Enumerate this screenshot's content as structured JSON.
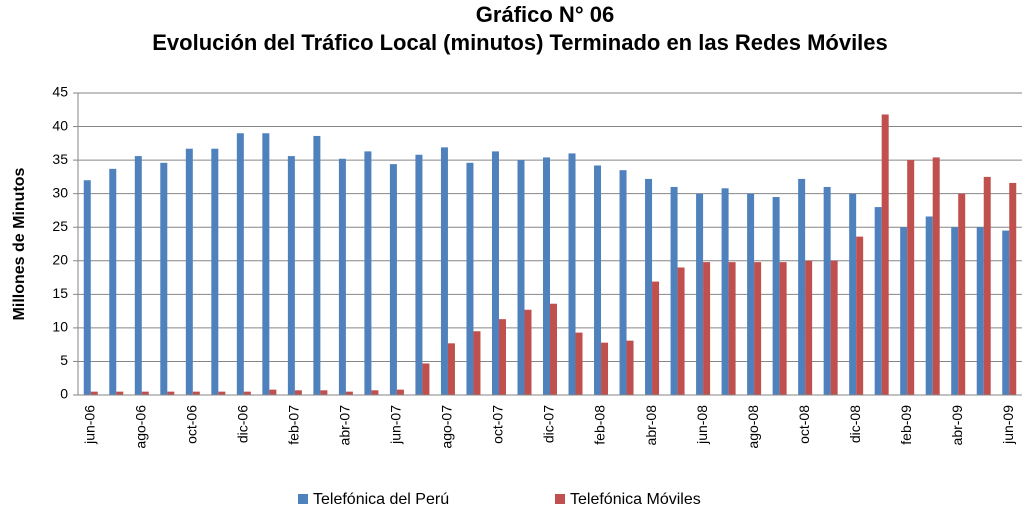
{
  "chart_data": {
    "type": "bar",
    "title": "Gráfico N° 06",
    "subtitle": "Evolución del Tráfico Local (minutos) Terminado en las Redes Móviles",
    "y_label": "Millones de Minutos",
    "categories": [
      "jun-06",
      null,
      "ago-06",
      null,
      "oct-06",
      null,
      "dic-06",
      null,
      "feb-07",
      null,
      "abr-07",
      null,
      "jun-07",
      null,
      "ago-07",
      null,
      "oct-07",
      null,
      "dic-07",
      null,
      "feb-08",
      null,
      "abr-08",
      null,
      "jun-08",
      null,
      "ago-08",
      null,
      "oct-08",
      null,
      "dic-08",
      null,
      "feb-09",
      null,
      "abr-09",
      null,
      "jun-09"
    ],
    "series": [
      {
        "name": "Telefónica del Perú",
        "color": "#4f81bd",
        "values": [
          32,
          33.7,
          35.6,
          34.6,
          36.7,
          36.7,
          39,
          39,
          35.6,
          38.6,
          35.2,
          36.3,
          34.4,
          35.8,
          36.9,
          34.6,
          36.3,
          35,
          35.4,
          36,
          34.2,
          33.5,
          32.2,
          31,
          30,
          30.8,
          30,
          29.5,
          32.2,
          31,
          30,
          28,
          25,
          26.6,
          25,
          25,
          24.5
        ]
      },
      {
        "name": "Telefónica Móviles",
        "color": "#c0504d",
        "values": [
          0.5,
          0.5,
          0.5,
          0.5,
          0.5,
          0.5,
          0.5,
          0.8,
          0.7,
          0.7,
          0.5,
          0.7,
          0.8,
          4.7,
          7.7,
          9.5,
          11.3,
          12.7,
          13.6,
          9.3,
          7.8,
          8.1,
          16.9,
          19,
          19.8,
          19.8,
          19.8,
          19.8,
          20,
          20,
          23.6,
          41.8,
          35,
          35.4,
          30,
          32.5,
          31.6
        ]
      }
    ],
    "ylim": [
      0,
      45
    ],
    "yticks": [
      0,
      5,
      10,
      15,
      20,
      25,
      30,
      35,
      40,
      45
    ],
    "grid": true,
    "legend": "bottom"
  }
}
